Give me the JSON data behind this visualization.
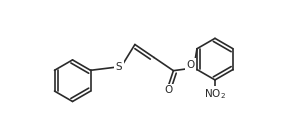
{
  "bg_color": "#ffffff",
  "line_color": "#2a2a2a",
  "line_width": 1.2,
  "figsize": [
    2.85,
    1.27
  ],
  "dpi": 100,
  "xlim": [
    0,
    285
  ],
  "ylim": [
    0,
    127
  ]
}
